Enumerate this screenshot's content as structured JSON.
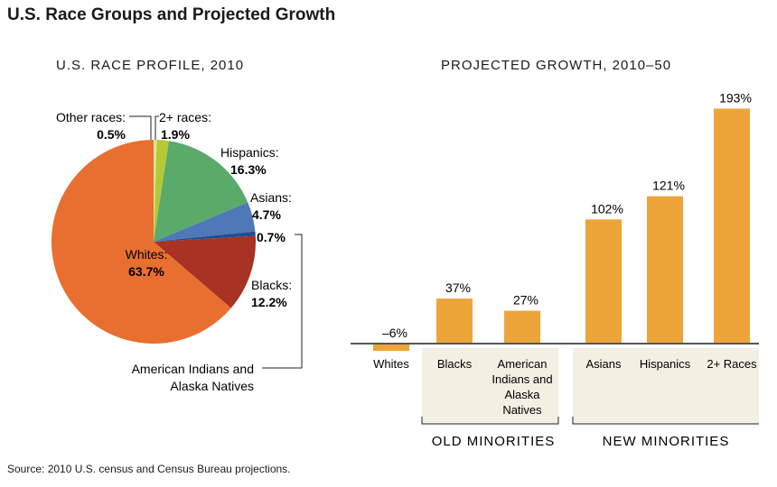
{
  "title": "U.S. Race Groups and Projected Growth",
  "source": "Source: 2010 U.S. census and Census Bureau projections.",
  "chart_data": [
    {
      "type": "pie",
      "title": "U.S. RACE PROFILE, 2010",
      "slices": [
        {
          "label": "Other races:",
          "value": 0.5,
          "text": "0.5%",
          "color": "#d9e3a0"
        },
        {
          "label": "2+ races:",
          "value": 1.9,
          "text": "1.9%",
          "color": "#b5c935"
        },
        {
          "label": "Hispanics:",
          "value": 16.3,
          "text": "16.3%",
          "color": "#5aaa6a"
        },
        {
          "label": "Asians:",
          "value": 4.7,
          "text": "4.7%",
          "color": "#4f78b8"
        },
        {
          "label": "American Indians and Alaska Natives",
          "value": 0.7,
          "text": "0.7%",
          "color": "#1d4f91"
        },
        {
          "label": "Blacks:",
          "value": 12.2,
          "text": "12.2%",
          "color": "#a83224"
        },
        {
          "label": "Whites:",
          "value": 63.7,
          "text": "63.7%",
          "color": "#e86f2f"
        }
      ]
    },
    {
      "type": "bar",
      "title": "PROJECTED GROWTH, 2010–50",
      "color": "#eda53a",
      "categories": [
        "Whites",
        "Blacks",
        "American Indians and Alaska Natives",
        "Asians",
        "Hispanics",
        "2+ Races"
      ],
      "values": [
        -6,
        37,
        27,
        102,
        121,
        193
      ],
      "data_labels": [
        "–6%",
        "37%",
        "27%",
        "102%",
        "121%",
        "193%"
      ],
      "groups": [
        {
          "label": "OLD MINORITIES",
          "members": [
            "Blacks",
            "American Indians and Alaska Natives"
          ]
        },
        {
          "label": "NEW MINORITIES",
          "members": [
            "Asians",
            "Hispanics",
            "2+ Races"
          ]
        }
      ]
    }
  ]
}
